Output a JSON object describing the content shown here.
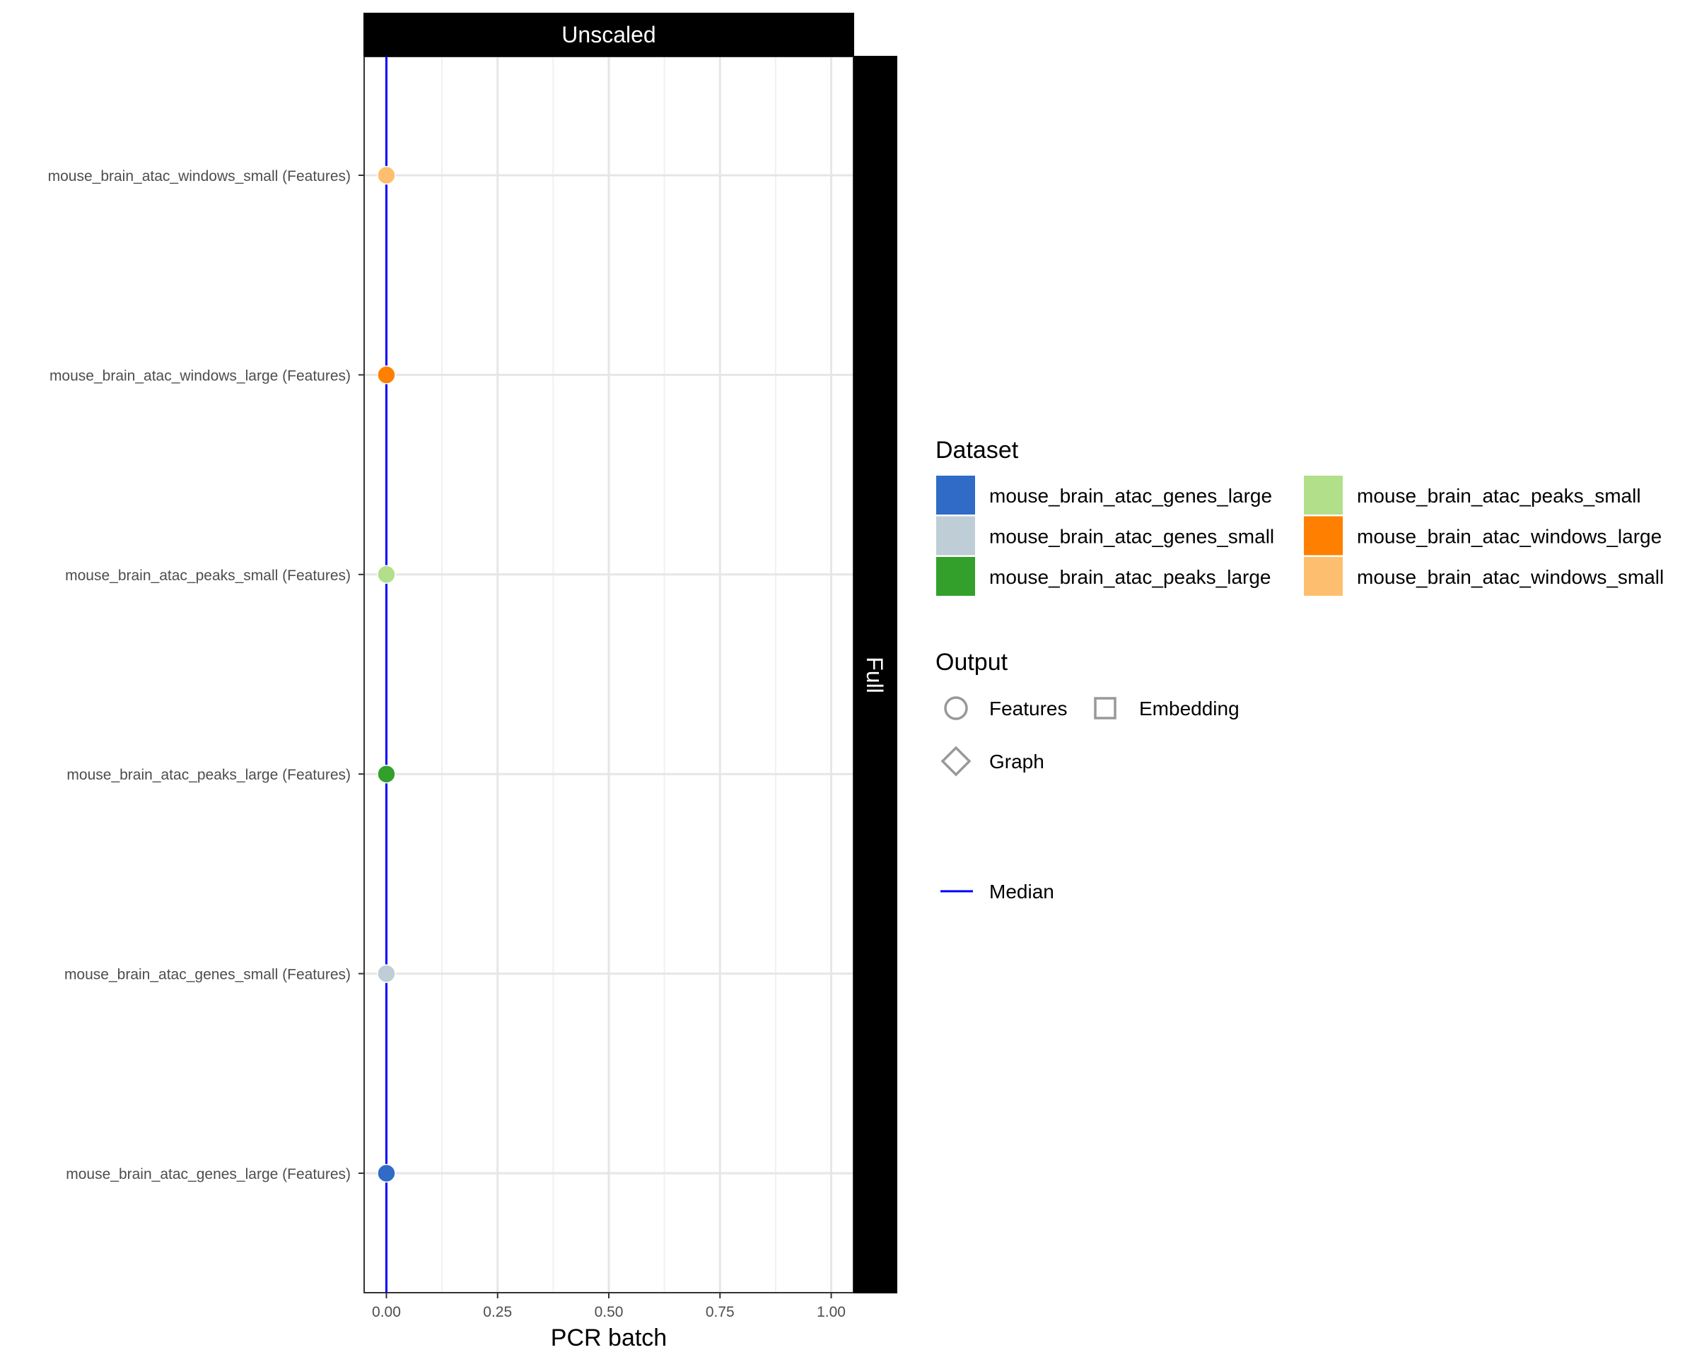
{
  "chart_data": {
    "type": "scatter",
    "panel_top_strip": "Unscaled",
    "panel_side_strip": "Full",
    "xlabel": "PCR batch",
    "xlim": [
      -0.05,
      1.05
    ],
    "xticks": [
      0,
      0.25,
      0.5,
      0.75,
      1
    ],
    "xtick_labels": [
      "0.00",
      "0.25",
      "0.50",
      "0.75",
      "1.00"
    ],
    "grid": true,
    "categories": [
      "mouse_brain_atac_genes_large (Features)",
      "mouse_brain_atac_genes_small (Features)",
      "mouse_brain_atac_peaks_large (Features)",
      "mouse_brain_atac_peaks_small (Features)",
      "mouse_brain_atac_windows_large (Features)",
      "mouse_brain_atac_windows_small (Features)"
    ],
    "points": [
      {
        "category": "mouse_brain_atac_genes_large (Features)",
        "x": 0.0,
        "dataset": "mouse_brain_atac_genes_large",
        "output": "Features",
        "color": "#2F6BC7"
      },
      {
        "category": "mouse_brain_atac_genes_small (Features)",
        "x": 0.0,
        "dataset": "mouse_brain_atac_genes_small",
        "output": "Features",
        "color": "#BFCDD6"
      },
      {
        "category": "mouse_brain_atac_peaks_large (Features)",
        "x": 0.0,
        "dataset": "mouse_brain_atac_peaks_large",
        "output": "Features",
        "color": "#33A02C"
      },
      {
        "category": "mouse_brain_atac_peaks_small (Features)",
        "x": 0.0,
        "dataset": "mouse_brain_atac_peaks_small",
        "output": "Features",
        "color": "#B2DF8A"
      },
      {
        "category": "mouse_brain_atac_windows_large (Features)",
        "x": 0.0,
        "dataset": "mouse_brain_atac_windows_large",
        "output": "Features",
        "color": "#FF7F00"
      },
      {
        "category": "mouse_brain_atac_windows_small (Features)",
        "x": 0.0,
        "dataset": "mouse_brain_atac_windows_small",
        "output": "Features",
        "color": "#FDBF6F"
      }
    ],
    "median": {
      "label": "Median",
      "x": 0.0,
      "color": "#0000FF"
    },
    "legend": {
      "position": "right",
      "dataset_title": "Dataset",
      "datasets": [
        {
          "name": "mouse_brain_atac_genes_large",
          "color": "#2F6BC7"
        },
        {
          "name": "mouse_brain_atac_genes_small",
          "color": "#BFCDD6"
        },
        {
          "name": "mouse_brain_atac_peaks_large",
          "color": "#33A02C"
        },
        {
          "name": "mouse_brain_atac_peaks_small",
          "color": "#B2DF8A"
        },
        {
          "name": "mouse_brain_atac_windows_large",
          "color": "#FF7F00"
        },
        {
          "name": "mouse_brain_atac_windows_small",
          "color": "#FDBF6F"
        }
      ],
      "output_title": "Output",
      "outputs": [
        {
          "name": "Features",
          "shape": "circle"
        },
        {
          "name": "Embedding",
          "shape": "square"
        },
        {
          "name": "Graph",
          "shape": "diamond"
        }
      ],
      "median_label": "Median"
    }
  }
}
